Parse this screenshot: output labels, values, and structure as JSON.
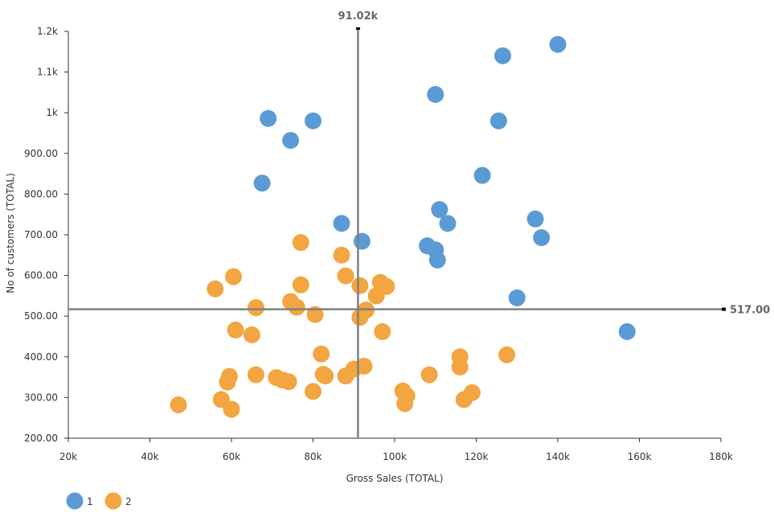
{
  "chart_data": {
    "type": "scatter",
    "xlabel": "Gross Sales (TOTAL)",
    "ylabel": "No of customers (TOTAL)",
    "xlim": [
      20000,
      180000
    ],
    "ylim": [
      200,
      1200
    ],
    "x_ticks": [
      {
        "value": 20000,
        "label": "20k"
      },
      {
        "value": 40000,
        "label": "40k"
      },
      {
        "value": 60000,
        "label": "60k"
      },
      {
        "value": 80000,
        "label": "80k"
      },
      {
        "value": 100000,
        "label": "100k"
      },
      {
        "value": 120000,
        "label": "120k"
      },
      {
        "value": 140000,
        "label": "140k"
      },
      {
        "value": 160000,
        "label": "160k"
      },
      {
        "value": 180000,
        "label": "180k"
      }
    ],
    "y_ticks": [
      {
        "value": 200,
        "label": "200.00"
      },
      {
        "value": 300,
        "label": "300.00"
      },
      {
        "value": 400,
        "label": "400.00"
      },
      {
        "value": 500,
        "label": "500.00"
      },
      {
        "value": 600,
        "label": "600.00"
      },
      {
        "value": 700,
        "label": "700.00"
      },
      {
        "value": 800,
        "label": "800.00"
      },
      {
        "value": 900,
        "label": "900.00"
      },
      {
        "value": 1000,
        "label": "1k"
      },
      {
        "value": 1100,
        "label": "1.1k"
      },
      {
        "value": 1200,
        "label": "1.2k"
      }
    ],
    "reference_lines": {
      "x": {
        "value": 91020,
        "label": "91.02k"
      },
      "y": {
        "value": 517,
        "label": "517.00"
      }
    },
    "grid": false,
    "legend_position": "bottom-left",
    "series": [
      {
        "name": "1",
        "color": "#5b9bd5",
        "points": [
          {
            "x": 140000,
            "y": 1168
          },
          {
            "x": 126500,
            "y": 1140
          },
          {
            "x": 110000,
            "y": 1045
          },
          {
            "x": 125500,
            "y": 980
          },
          {
            "x": 69000,
            "y": 986
          },
          {
            "x": 80000,
            "y": 980
          },
          {
            "x": 74500,
            "y": 932
          },
          {
            "x": 121500,
            "y": 846
          },
          {
            "x": 67500,
            "y": 827
          },
          {
            "x": 111000,
            "y": 762
          },
          {
            "x": 134500,
            "y": 739
          },
          {
            "x": 113000,
            "y": 728
          },
          {
            "x": 87000,
            "y": 728
          },
          {
            "x": 136000,
            "y": 693
          },
          {
            "x": 92000,
            "y": 684
          },
          {
            "x": 108000,
            "y": 673
          },
          {
            "x": 110000,
            "y": 663
          },
          {
            "x": 110500,
            "y": 638
          },
          {
            "x": 130000,
            "y": 545
          },
          {
            "x": 157000,
            "y": 462
          }
        ]
      },
      {
        "name": "2",
        "color": "#f2a541",
        "points": [
          {
            "x": 77000,
            "y": 681
          },
          {
            "x": 87000,
            "y": 650
          },
          {
            "x": 60500,
            "y": 597
          },
          {
            "x": 88000,
            "y": 599
          },
          {
            "x": 56000,
            "y": 567
          },
          {
            "x": 77000,
            "y": 577
          },
          {
            "x": 91500,
            "y": 575
          },
          {
            "x": 96500,
            "y": 583
          },
          {
            "x": 98000,
            "y": 573
          },
          {
            "x": 95500,
            "y": 550
          },
          {
            "x": 74500,
            "y": 536
          },
          {
            "x": 76000,
            "y": 522
          },
          {
            "x": 66000,
            "y": 521
          },
          {
            "x": 93000,
            "y": 515
          },
          {
            "x": 80500,
            "y": 504
          },
          {
            "x": 91500,
            "y": 497
          },
          {
            "x": 61000,
            "y": 466
          },
          {
            "x": 65000,
            "y": 454
          },
          {
            "x": 97000,
            "y": 462
          },
          {
            "x": 82000,
            "y": 407
          },
          {
            "x": 116000,
            "y": 400
          },
          {
            "x": 127500,
            "y": 405
          },
          {
            "x": 90000,
            "y": 370
          },
          {
            "x": 92500,
            "y": 377
          },
          {
            "x": 116000,
            "y": 375
          },
          {
            "x": 59500,
            "y": 352
          },
          {
            "x": 66000,
            "y": 356
          },
          {
            "x": 71000,
            "y": 349
          },
          {
            "x": 72500,
            "y": 343
          },
          {
            "x": 74000,
            "y": 339
          },
          {
            "x": 82500,
            "y": 357
          },
          {
            "x": 83000,
            "y": 353
          },
          {
            "x": 88000,
            "y": 353
          },
          {
            "x": 108500,
            "y": 356
          },
          {
            "x": 59000,
            "y": 338
          },
          {
            "x": 80000,
            "y": 315
          },
          {
            "x": 102000,
            "y": 316
          },
          {
            "x": 103000,
            "y": 304
          },
          {
            "x": 119000,
            "y": 312
          },
          {
            "x": 117000,
            "y": 295
          },
          {
            "x": 57500,
            "y": 295
          },
          {
            "x": 47000,
            "y": 282
          },
          {
            "x": 60000,
            "y": 271
          },
          {
            "x": 102500,
            "y": 285
          }
        ]
      }
    ]
  }
}
